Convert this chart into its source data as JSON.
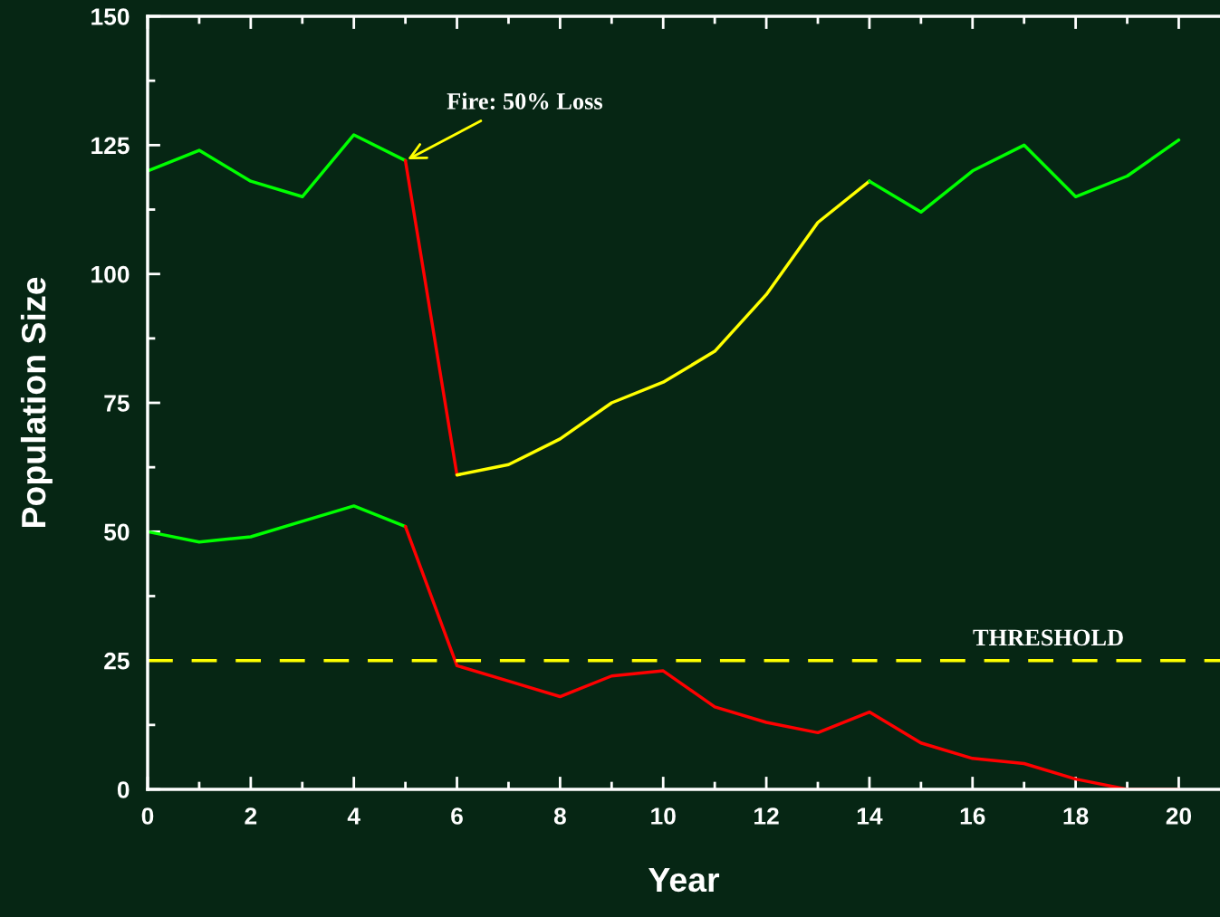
{
  "chart_data": {
    "type": "line",
    "xlabel": "Year",
    "ylabel": "Population Size",
    "xlim": [
      0,
      20.8
    ],
    "xticks": [
      0,
      2,
      4,
      6,
      8,
      10,
      12,
      14,
      16,
      18,
      20
    ],
    "ylim": [
      0,
      150
    ],
    "yticks": [
      0,
      25,
      50,
      75,
      100,
      125,
      150
    ],
    "grid": false,
    "legend": false,
    "marker": "none",
    "line_style": "solid",
    "series": [
      {
        "color": "#00ff00",
        "x": [
          0,
          1,
          2,
          3,
          4,
          5
        ],
        "values": [
          120,
          124,
          118,
          115,
          127,
          122
        ]
      },
      {
        "color": "#ff0000",
        "x": [
          5,
          6
        ],
        "values": [
          122,
          61
        ]
      },
      {
        "color": "#ffff00",
        "x": [
          6,
          7,
          8,
          9,
          10,
          11,
          12,
          13,
          14
        ],
        "values": [
          61,
          63,
          68,
          75,
          79,
          85,
          96,
          110,
          118
        ]
      },
      {
        "color": "#00ff00",
        "x": [
          14,
          15,
          16,
          17,
          18,
          19,
          20
        ],
        "values": [
          118,
          112,
          120,
          125,
          115,
          119,
          126
        ]
      },
      {
        "color": "#00ff00",
        "x": [
          0,
          1,
          2,
          3,
          4,
          5
        ],
        "values": [
          50,
          48,
          49,
          52,
          55,
          51
        ]
      },
      {
        "color": "#ff0000",
        "x": [
          5,
          6,
          7,
          8,
          9,
          10,
          11,
          12,
          13,
          14,
          15,
          16,
          17,
          18,
          19,
          20
        ],
        "values": [
          51,
          24,
          21,
          18,
          22,
          23,
          16,
          13,
          11,
          15,
          9,
          6,
          5,
          2,
          0,
          0
        ]
      }
    ],
    "ref_lines": [
      {
        "axis": "y",
        "value": 25,
        "label": "THRESHOLD",
        "color": "#ffff00",
        "line_style": "dashed"
      }
    ],
    "annotations": [
      {
        "text": "Fire: 50% Loss",
        "x": 5,
        "y": 122
      }
    ]
  }
}
